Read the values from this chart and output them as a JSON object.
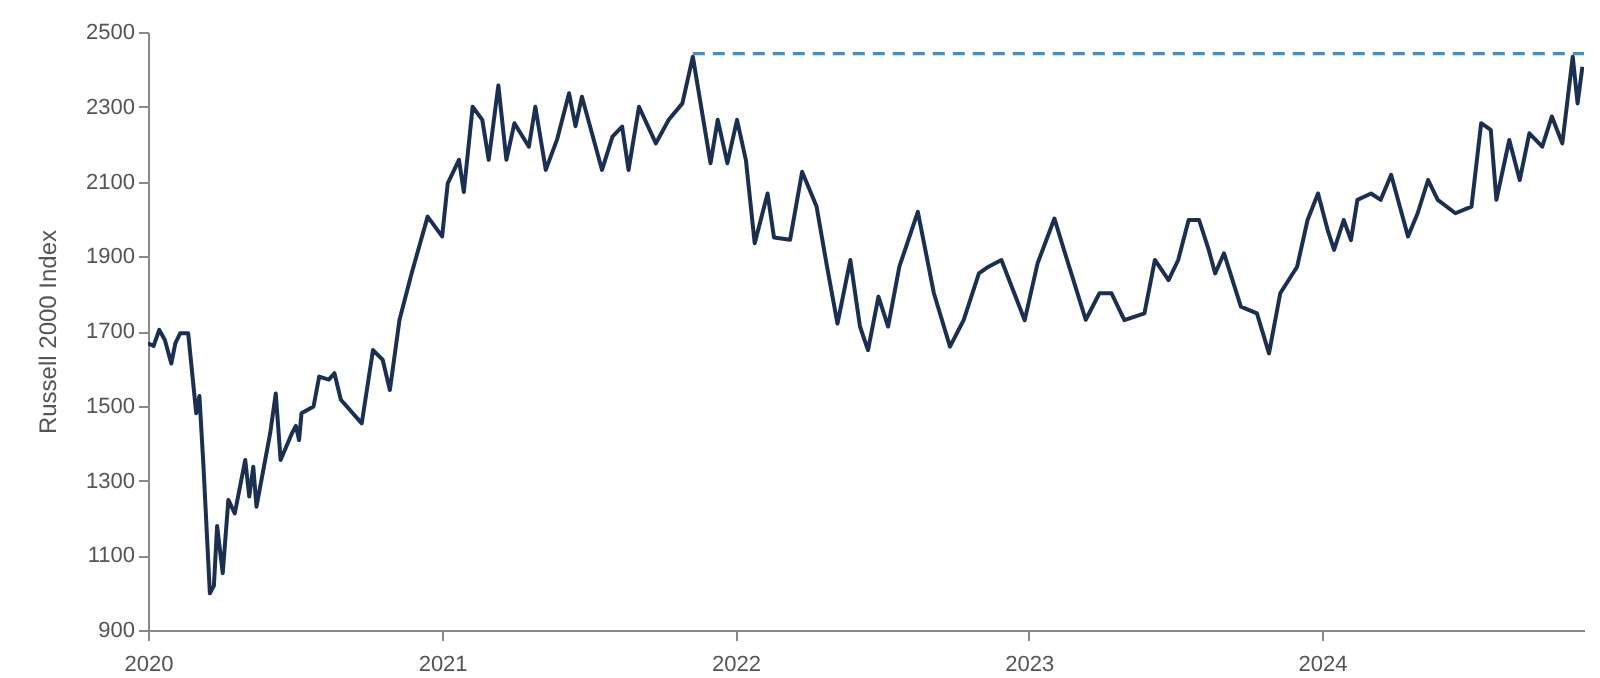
{
  "chart_data": {
    "type": "line",
    "ylabel": "Russell 2000 Index",
    "xlim": [
      "2020-01-01",
      "2024-11-22"
    ],
    "ylim": [
      900,
      2500
    ],
    "yticks": [
      900,
      1100,
      1300,
      1500,
      1700,
      1900,
      2100,
      2300,
      2500
    ],
    "xticks": [
      {
        "value": "2020",
        "label": "2020"
      },
      {
        "value": "2021",
        "label": "2021"
      },
      {
        "value": "2022",
        "label": "2022"
      },
      {
        "value": "2023",
        "label": "2023"
      },
      {
        "value": "2024",
        "label": "2024"
      }
    ],
    "grid": false,
    "series": [
      {
        "color": "#1b2f52",
        "line_style": "solid",
        "x": [
          "2020-01-01",
          "2020-01-08",
          "2020-01-15",
          "2020-01-22",
          "2020-01-30",
          "2020-02-04",
          "2020-02-10",
          "2020-02-20",
          "2020-03-01",
          "2020-03-05",
          "2020-03-10",
          "2020-03-18",
          "2020-03-23",
          "2020-03-27",
          "2020-04-03",
          "2020-04-10",
          "2020-04-18",
          "2020-05-01",
          "2020-05-06",
          "2020-05-11",
          "2020-05-15",
          "2020-06-01",
          "2020-06-08",
          "2020-06-14",
          "2020-06-28",
          "2020-07-03",
          "2020-07-07",
          "2020-07-10",
          "2020-07-25",
          "2020-08-01",
          "2020-08-13",
          "2020-08-20",
          "2020-08-28",
          "2020-09-23",
          "2020-10-07",
          "2020-10-19",
          "2020-10-28",
          "2020-11-09",
          "2020-11-24",
          "2020-12-14",
          "2021-01-01",
          "2021-01-08",
          "2021-01-22",
          "2021-01-28",
          "2021-02-08",
          "2021-02-20",
          "2021-02-28",
          "2021-03-12",
          "2021-03-22",
          "2021-04-01",
          "2021-04-19",
          "2021-04-27",
          "2021-05-10",
          "2021-05-24",
          "2021-06-08",
          "2021-06-16",
          "2021-06-24",
          "2021-07-19",
          "2021-08-01",
          "2021-08-13",
          "2021-08-21",
          "2021-09-03",
          "2021-09-24",
          "2021-10-10",
          "2021-10-27",
          "2021-11-09",
          "2021-12-01",
          "2021-12-10",
          "2021-12-22",
          "2022-01-03",
          "2022-01-14",
          "2022-01-25",
          "2022-02-10",
          "2022-02-18",
          "2022-03-10",
          "2022-03-25",
          "2022-04-12",
          "2022-04-25",
          "2022-05-08",
          "2022-05-24",
          "2022-06-05",
          "2022-06-15",
          "2022-06-28",
          "2022-07-10",
          "2022-07-24",
          "2022-08-16",
          "2022-09-05",
          "2022-09-25",
          "2022-10-12",
          "2022-10-31",
          "2022-11-12",
          "2022-11-28",
          "2022-12-14",
          "2022-12-27",
          "2023-01-12",
          "2023-02-02",
          "2023-02-14",
          "2023-03-13",
          "2023-03-30",
          "2023-04-14",
          "2023-04-30",
          "2023-05-25",
          "2023-06-07",
          "2023-06-24",
          "2023-07-06",
          "2023-07-19",
          "2023-08-01",
          "2023-08-13",
          "2023-08-21",
          "2023-09-01",
          "2023-09-22",
          "2023-10-12",
          "2023-10-27",
          "2023-11-10",
          "2023-12-01",
          "2023-12-14",
          "2023-12-27",
          "2024-01-08",
          "2024-01-16",
          "2024-01-28",
          "2024-02-06",
          "2024-02-14",
          "2024-03-02",
          "2024-03-14",
          "2024-03-27",
          "2024-04-17",
          "2024-04-29",
          "2024-05-12",
          "2024-05-24",
          "2024-06-15",
          "2024-07-05",
          "2024-07-17",
          "2024-07-29",
          "2024-08-05",
          "2024-08-21",
          "2024-09-03",
          "2024-09-15",
          "2024-10-01",
          "2024-10-13",
          "2024-10-26",
          "2024-11-08",
          "2024-11-14",
          "2024-11-20"
        ],
        "values": [
          1667,
          1660,
          1703,
          1676,
          1613,
          1667,
          1694,
          1694,
          1480,
          1526,
          1339,
          998,
          1018,
          1178,
          1052,
          1248,
          1212,
          1355,
          1257,
          1337,
          1230,
          1426,
          1533,
          1355,
          1426,
          1446,
          1408,
          1480,
          1498,
          1578,
          1570,
          1587,
          1516,
          1453,
          1649,
          1623,
          1542,
          1730,
          1854,
          2006,
          1953,
          2095,
          2158,
          2072,
          2300,
          2265,
          2158,
          2357,
          2158,
          2256,
          2193,
          2300,
          2131,
          2212,
          2336,
          2248,
          2327,
          2131,
          2220,
          2247,
          2131,
          2300,
          2202,
          2265,
          2309,
          2434,
          2149,
          2265,
          2149,
          2265,
          2158,
          1935,
          2068,
          1950,
          1944,
          2126,
          2033,
          1872,
          1720,
          1890,
          1712,
          1649,
          1792,
          1712,
          1872,
          2019,
          1801,
          1658,
          1729,
          1854,
          1872,
          1890,
          1801,
          1729,
          1881,
          2001,
          1916,
          1730,
          1801,
          1801,
          1729,
          1747,
          1890,
          1836,
          1890,
          1997,
          1997,
          1917,
          1854,
          1908,
          1765,
          1747,
          1640,
          1801,
          1872,
          1997,
          2068,
          1970,
          1917,
          1997,
          1943,
          2051,
          2068,
          2051,
          2118,
          1953,
          2015,
          2104,
          2051,
          2015,
          2033,
          2256,
          2238,
          2051,
          2211,
          2104,
          2229,
          2193,
          2274,
          2202,
          2434,
          2309,
          2407
        ]
      },
      {
        "type": "line",
        "color": "#3d8fc9",
        "line_style": "dashed",
        "x": [
          "2021-11-09",
          "2024-11-22"
        ],
        "values": [
          2442,
          2442
        ]
      }
    ]
  }
}
